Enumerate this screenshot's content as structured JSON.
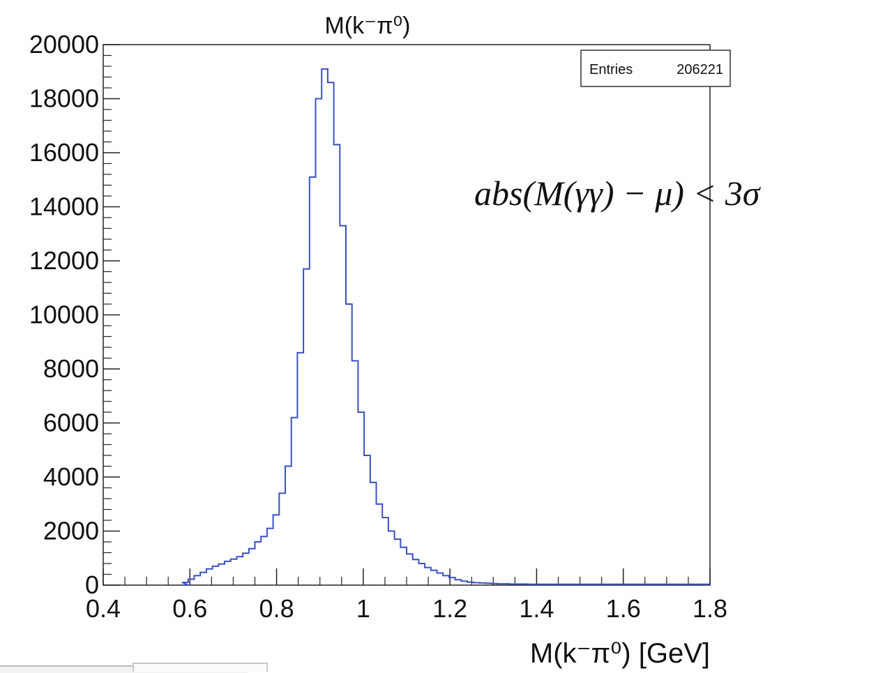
{
  "chart_data": {
    "type": "histogram",
    "title": "M(k⁻π⁰)",
    "xlabel": "M(k⁻π⁰) [GeV]",
    "ylabel": "",
    "xlim": [
      0.4,
      1.8
    ],
    "ylim": [
      0,
      20000
    ],
    "x_ticks": [
      "0.4",
      "0.6",
      "0.8",
      "1",
      "1.2",
      "1.4",
      "1.6",
      "1.8"
    ],
    "y_ticks": [
      "0",
      "2000",
      "4000",
      "6000",
      "8000",
      "10000",
      "12000",
      "14000",
      "16000",
      "18000",
      "20000"
    ],
    "bin_width": 0.014,
    "series": [
      {
        "color": "#3b4fc4",
        "bins": [
          [
            0.582,
            0
          ],
          [
            0.582,
            100
          ],
          [
            0.596,
            220
          ],
          [
            0.61,
            350
          ],
          [
            0.624,
            470
          ],
          [
            0.638,
            600
          ],
          [
            0.652,
            700
          ],
          [
            0.666,
            780
          ],
          [
            0.68,
            880
          ],
          [
            0.694,
            960
          ],
          [
            0.708,
            1050
          ],
          [
            0.722,
            1180
          ],
          [
            0.736,
            1350
          ],
          [
            0.75,
            1600
          ],
          [
            0.764,
            1800
          ],
          [
            0.778,
            2100
          ],
          [
            0.792,
            2600
          ],
          [
            0.806,
            3400
          ],
          [
            0.82,
            4400
          ],
          [
            0.834,
            6200
          ],
          [
            0.848,
            8600
          ],
          [
            0.862,
            11700
          ],
          [
            0.876,
            15100
          ],
          [
            0.89,
            18000
          ],
          [
            0.904,
            19100
          ],
          [
            0.918,
            18600
          ],
          [
            0.932,
            16300
          ],
          [
            0.946,
            13300
          ],
          [
            0.96,
            10400
          ],
          [
            0.974,
            8300
          ],
          [
            0.988,
            6400
          ],
          [
            1.002,
            4800
          ],
          [
            1.016,
            3800
          ],
          [
            1.03,
            3000
          ],
          [
            1.044,
            2500
          ],
          [
            1.058,
            2000
          ],
          [
            1.072,
            1700
          ],
          [
            1.086,
            1400
          ],
          [
            1.1,
            1150
          ],
          [
            1.114,
            950
          ],
          [
            1.128,
            800
          ],
          [
            1.142,
            650
          ],
          [
            1.156,
            550
          ],
          [
            1.17,
            450
          ],
          [
            1.184,
            350
          ],
          [
            1.198,
            280
          ],
          [
            1.212,
            200
          ],
          [
            1.226,
            150
          ],
          [
            1.24,
            110
          ],
          [
            1.254,
            90
          ],
          [
            1.268,
            80
          ],
          [
            1.282,
            70
          ],
          [
            1.296,
            60
          ],
          [
            1.31,
            50
          ],
          [
            1.324,
            50
          ],
          [
            1.338,
            40
          ],
          [
            1.352,
            40
          ],
          [
            1.366,
            40
          ],
          [
            1.38,
            30
          ],
          [
            1.394,
            30
          ],
          [
            1.408,
            30
          ],
          [
            1.422,
            30
          ],
          [
            1.436,
            30
          ],
          [
            1.45,
            30
          ],
          [
            1.464,
            30
          ],
          [
            1.478,
            30
          ],
          [
            1.492,
            30
          ],
          [
            1.506,
            30
          ],
          [
            1.52,
            30
          ],
          [
            1.534,
            30
          ],
          [
            1.548,
            30
          ],
          [
            1.562,
            30
          ],
          [
            1.576,
            30
          ],
          [
            1.59,
            30
          ],
          [
            1.604,
            30
          ],
          [
            1.618,
            30
          ],
          [
            1.632,
            30
          ],
          [
            1.646,
            30
          ],
          [
            1.66,
            30
          ],
          [
            1.674,
            30
          ],
          [
            1.688,
            30
          ],
          [
            1.702,
            30
          ],
          [
            1.716,
            30
          ],
          [
            1.73,
            30
          ],
          [
            1.744,
            30
          ],
          [
            1.758,
            30
          ],
          [
            1.772,
            30
          ],
          [
            1.786,
            30
          ]
        ]
      }
    ],
    "stats_box": {
      "label": "Entries",
      "value": "206221"
    },
    "annotation": "abs(M(γγ) − μ) < 3σ",
    "grid": false,
    "legend": "top-right"
  }
}
